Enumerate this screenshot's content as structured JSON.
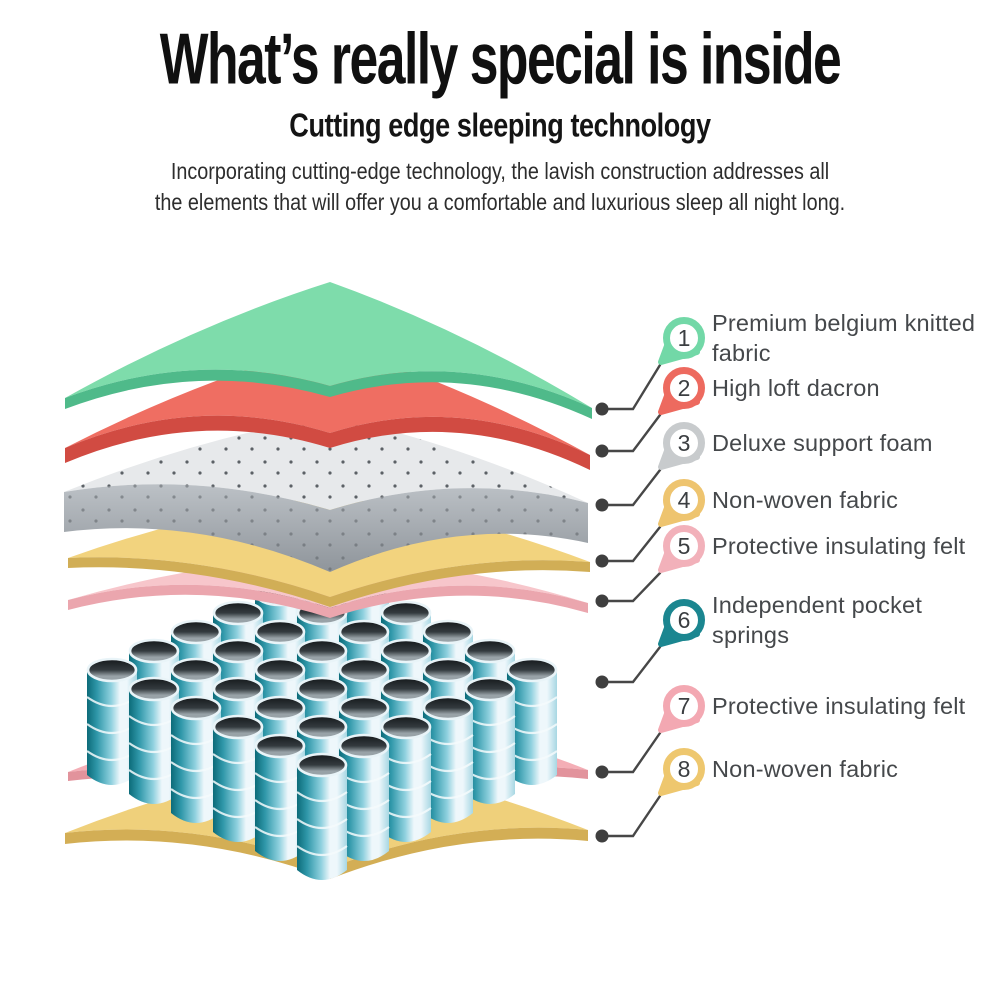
{
  "header": {
    "title": "What’s really special is inside",
    "subtitle": "Cutting edge sleeping technology",
    "description_line1": "Incorporating cutting-edge technology, the lavish construction addresses all",
    "description_line2": "the elements that will offer you a comfortable and luxurious sleep all night long."
  },
  "callouts": [
    {
      "num": "1",
      "label": "Premium belgium knitted fabric",
      "pin_color": "#72d8a7"
    },
    {
      "num": "2",
      "label": "High loft dacron",
      "pin_color": "#ed6a5f"
    },
    {
      "num": "3",
      "label": "Deluxe support foam",
      "pin_color": "#c8cbcd"
    },
    {
      "num": "4",
      "label": "Non-woven fabric",
      "pin_color": "#eec46f"
    },
    {
      "num": "5",
      "label": "Protective insulating felt",
      "pin_color": "#f2b1ba"
    },
    {
      "num": "6",
      "label": "Independent pocket springs",
      "pin_color": "#1b8690"
    },
    {
      "num": "7",
      "label": "Protective insulating felt",
      "pin_color": "#f3a8b2"
    },
    {
      "num": "8",
      "label": "Non-woven fabric",
      "pin_color": "#eec76e"
    }
  ],
  "diagram": {
    "layers": [
      {
        "name": "knitted-fabric-sheet",
        "top": "#7edcab",
        "edge": "#4fba8a"
      },
      {
        "name": "dacron-sheet",
        "top": "#ef6e62",
        "edge": "#d14b42"
      },
      {
        "name": "support-foam-slab",
        "top": "#e7e9eb",
        "edge_top": "#bcc1c6",
        "edge_bottom": "#8f959b",
        "speckle": "#5c6166"
      },
      {
        "name": "non-woven-fabric-sheet",
        "top": "#f2d37e",
        "edge": "#d1ae56"
      },
      {
        "name": "insulating-felt-sheet",
        "top": "#f7c6cb",
        "edge": "#eba6ae"
      },
      {
        "name": "insulating-felt-sheet-lower",
        "top": "#f4aeb6",
        "edge": "#e2939c"
      },
      {
        "name": "non-woven-fabric-sheet-lower",
        "top": "#efd07b",
        "edge": "#d3ae55"
      }
    ],
    "springs": {
      "name": "pocket-springs",
      "dark": "#0c6b79",
      "mid1": "#2f97a9",
      "mid2": "#8ed0de",
      "light": "#eef7fb",
      "right": "#a7d7e3",
      "rim": "#e9f4f8",
      "wrap_line": "#f4fafc",
      "hole_dark": "#15191c",
      "hole_mid": "#343b3f",
      "hole_light": "#98a2a7"
    },
    "leader_line_color": "#474747",
    "dot_color": "#3f3f3f",
    "pin_number_color": "#3b3e41",
    "label_color": "#45484b"
  }
}
